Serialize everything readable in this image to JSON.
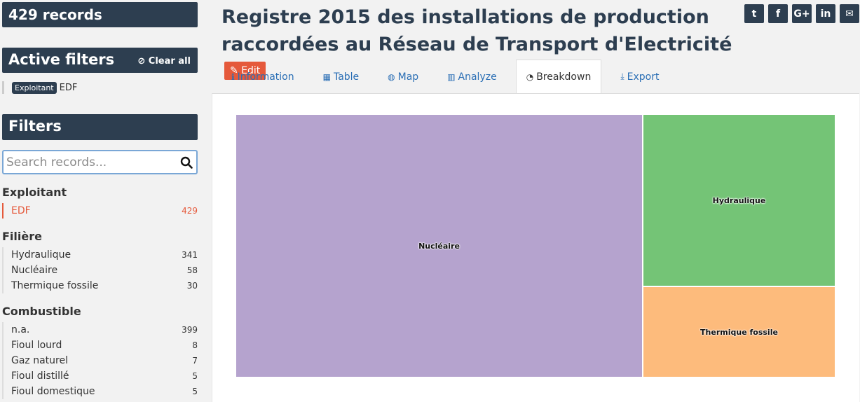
{
  "sidebar": {
    "records_label": "429 records",
    "active_filters_title": "Active filters",
    "clear_all_label": "Clear all",
    "active_filter": {
      "tag": "Exploitant",
      "value": "EDF"
    },
    "filters_title": "Filters",
    "search_placeholder": "Search records...",
    "facets": [
      {
        "title": "Exploitant",
        "items": [
          {
            "label": "EDF",
            "count": "429"
          }
        ]
      },
      {
        "title": "Filière",
        "items": [
          {
            "label": "Hydraulique",
            "count": "341"
          },
          {
            "label": "Nucléaire",
            "count": "58"
          },
          {
            "label": "Thermique fossile",
            "count": "30"
          }
        ]
      },
      {
        "title": "Combustible",
        "items": [
          {
            "label": "n.a.",
            "count": "399"
          },
          {
            "label": "Fioul lourd",
            "count": "8"
          },
          {
            "label": "Gaz naturel",
            "count": "7"
          },
          {
            "label": "Fioul distillé",
            "count": "5"
          },
          {
            "label": "Fioul domestique",
            "count": "5"
          }
        ]
      }
    ]
  },
  "header": {
    "title_line1": "Registre 2015 des installations de production",
    "title_line2": "raccordées au Réseau de Transport d'Electricité",
    "edit_label": "Edit",
    "share_icons": [
      "twitter-icon",
      "facebook-icon",
      "google-plus-icon",
      "linkedin-icon",
      "email-icon"
    ],
    "share_glyphs": [
      "t",
      "f",
      "G+",
      "in",
      "✉"
    ]
  },
  "tabs": [
    {
      "label": "Information",
      "icon": "info-icon",
      "glyph": "ℹ"
    },
    {
      "label": "Table",
      "icon": "table-icon",
      "glyph": "▦"
    },
    {
      "label": "Map",
      "icon": "globe-icon",
      "glyph": "◍"
    },
    {
      "label": "Analyze",
      "icon": "bar-chart-icon",
      "glyph": "▥"
    },
    {
      "label": "Breakdown",
      "icon": "pie-chart-icon",
      "glyph": "◔"
    },
    {
      "label": "Export",
      "icon": "download-icon",
      "glyph": "⤓"
    }
  ],
  "active_tab": "Breakdown",
  "colors": {
    "nav_dark": "#2d3e50",
    "accent_red": "#e5593b",
    "link_blue": "#2b6fb5"
  },
  "chart_data": {
    "type": "treemap",
    "categories": [
      "Nucléaire",
      "Hydraulique",
      "Thermique fossile"
    ],
    "colors": [
      "#b5a3ce",
      "#74c476",
      "#fdbb7c"
    ]
  }
}
